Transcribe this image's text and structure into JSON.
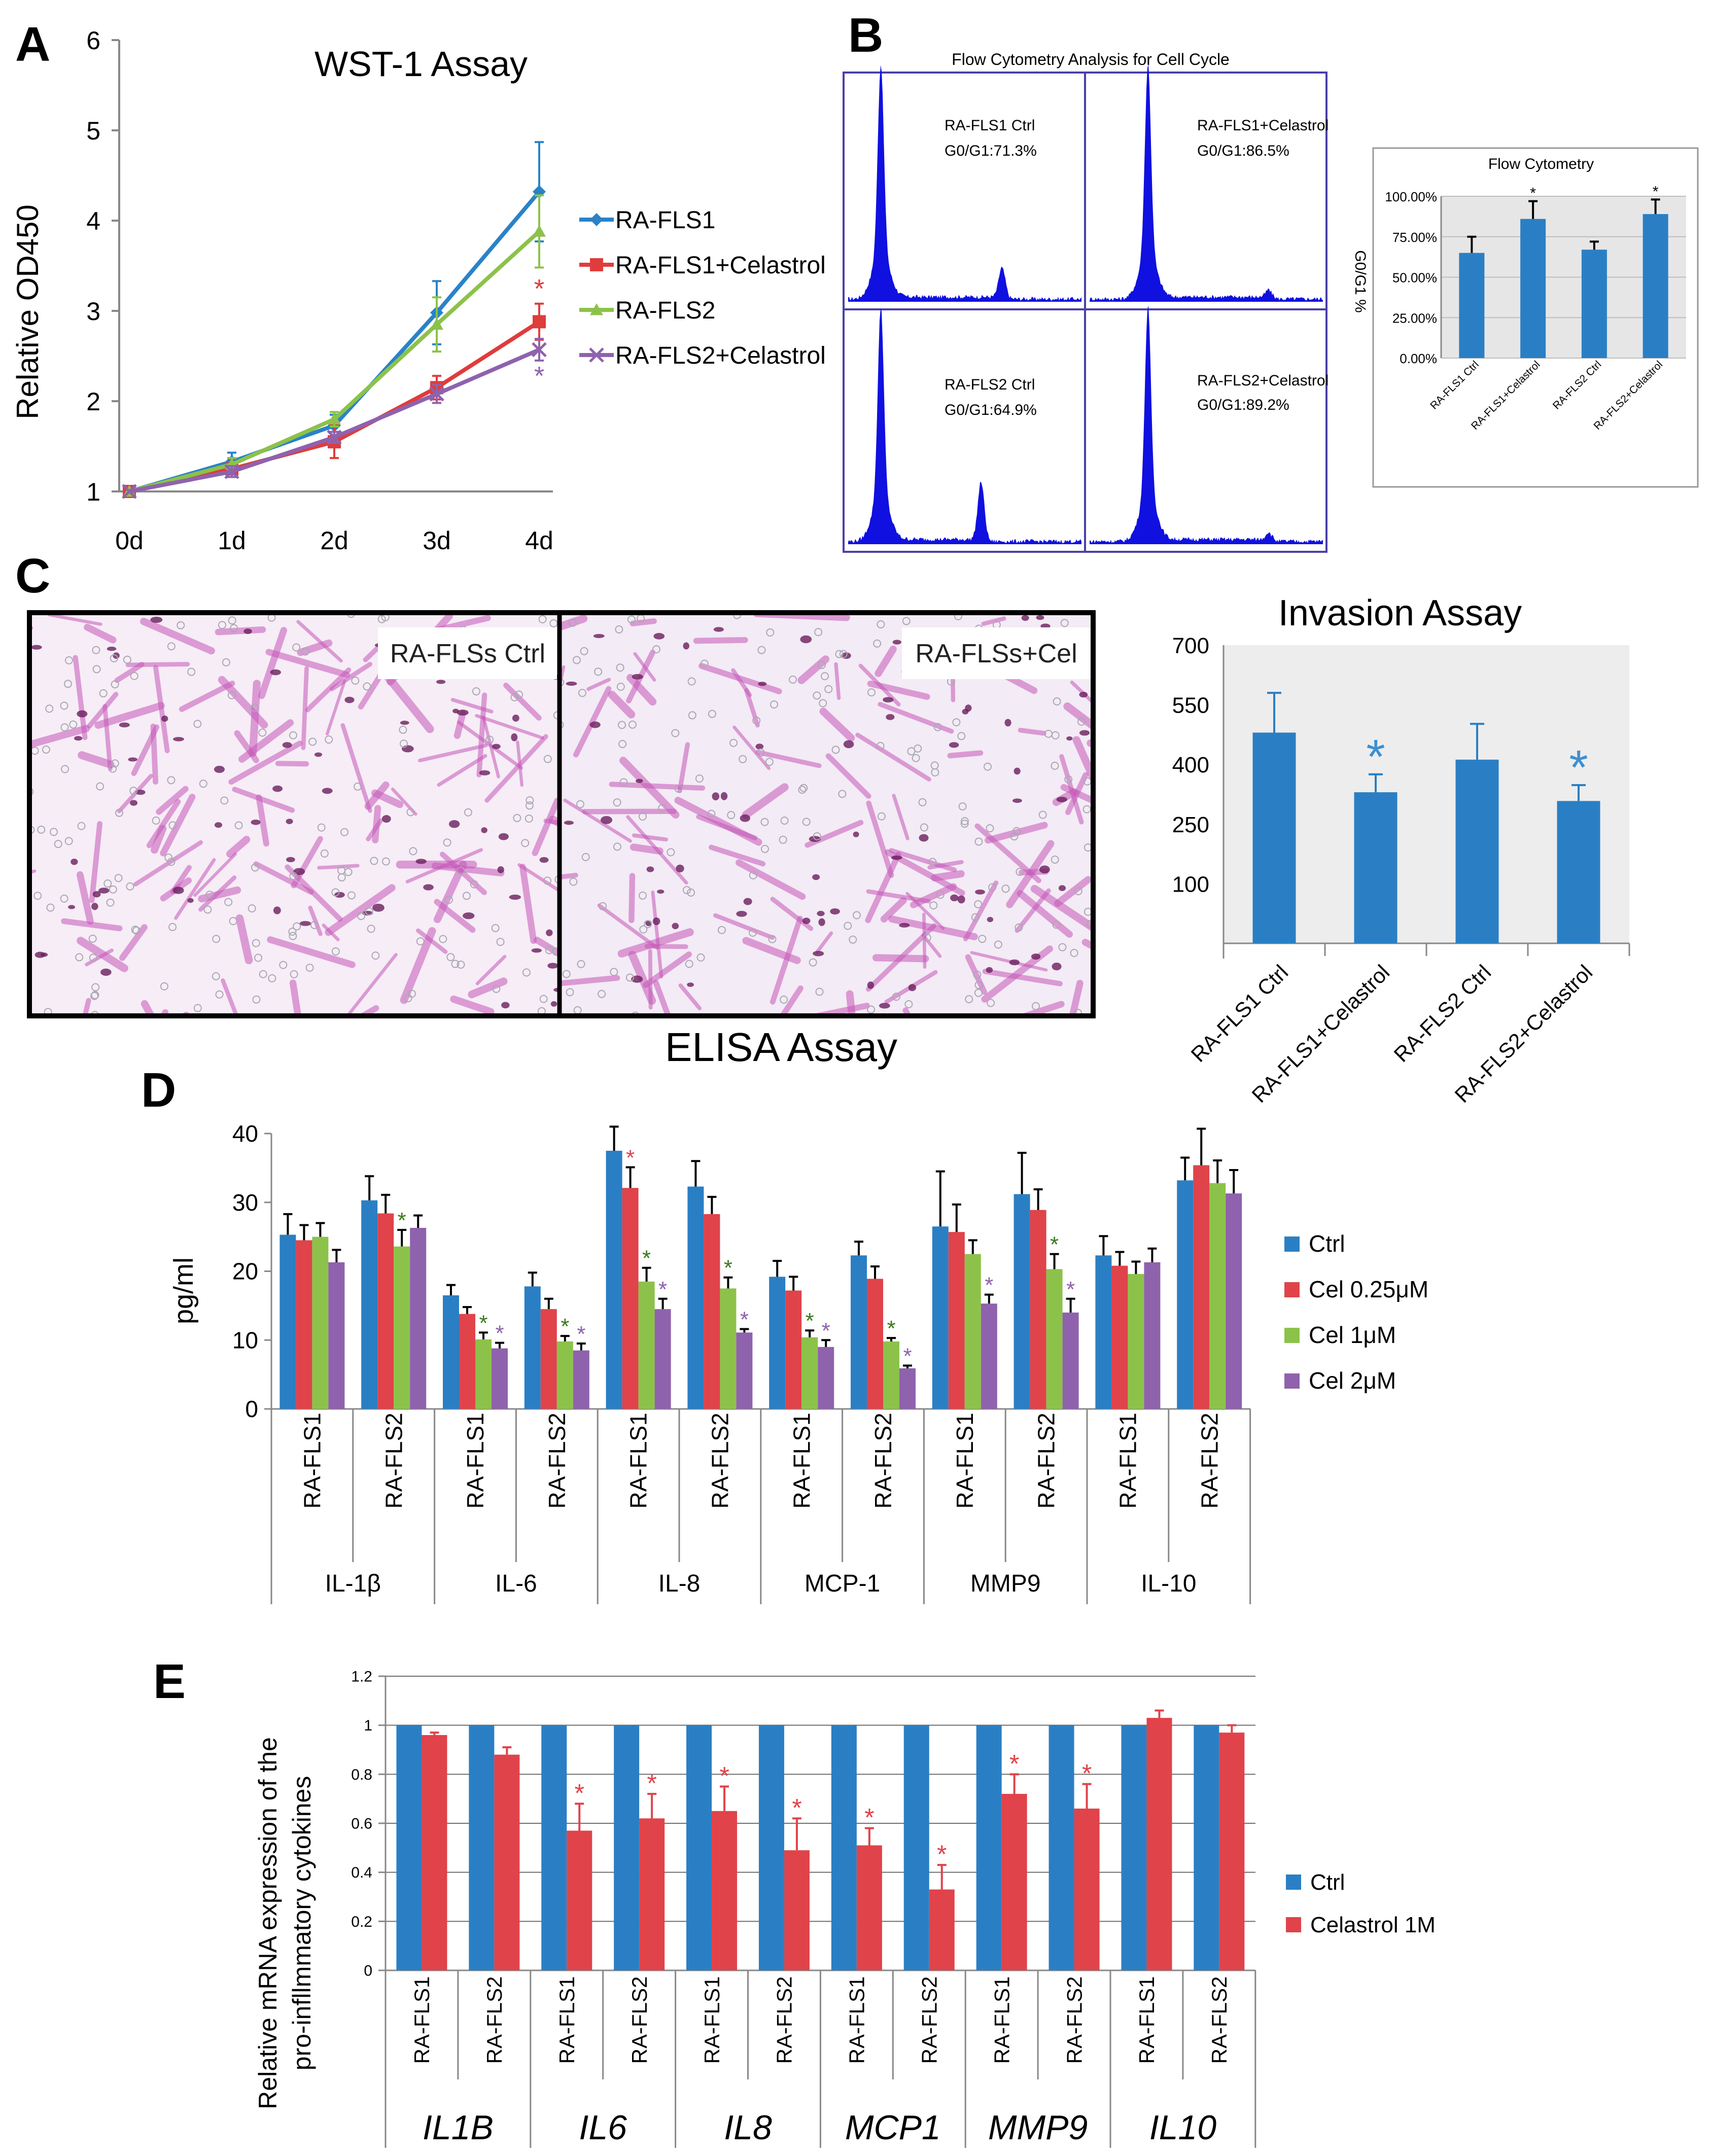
{
  "colors": {
    "blue": "#2a7fc4",
    "red": "#e0434a",
    "green": "#8cc24a",
    "purple": "#8f62ad",
    "line_blue": "#2a82c8",
    "line_red": "#df3c3c",
    "line_green": "#8cc24a",
    "line_purple": "#8f62ad",
    "flow_blue": "#1010e0",
    "panel_border": "#4a40a8",
    "star_blue": "#3d8fd2",
    "stain": "#c657b9",
    "axis": "#888888",
    "text": "#000000"
  },
  "panels": {
    "A": "A",
    "B": "B",
    "C": "C",
    "D": "D",
    "E": "E"
  },
  "panel_b": {
    "title": "Flow Cytometry Analysis for Cell Cycle",
    "histograms": [
      {
        "name": "RA-FLS1 Ctrl",
        "stat": "G0/G1:71.3%"
      },
      {
        "name": "RA-FLS1+Celastrol",
        "stat": "G0/G1:86.5%"
      },
      {
        "name": "RA-FLS2 Ctrl",
        "stat": "G0/G1:64.9%"
      },
      {
        "name": "RA-FLS2+Celastrol",
        "stat": "G0/G1:89.2%"
      }
    ]
  },
  "panel_c": {
    "images": [
      {
        "label": "RA-FLSs Ctrl"
      },
      {
        "label": "RA-FLSs+Cel"
      }
    ]
  },
  "chart_data": [
    {
      "id": "A",
      "type": "line",
      "title": "WST-1 Assay",
      "xlabel": "",
      "ylabel": "Relative OD450",
      "categories": [
        "0d",
        "1d",
        "2d",
        "3d",
        "4d"
      ],
      "ylim": [
        1,
        6
      ],
      "yticks": [
        1,
        2,
        3,
        4,
        5,
        6
      ],
      "series": [
        {
          "name": "RA-FLS1",
          "values": [
            1,
            1.33,
            1.73,
            2.98,
            4.32
          ],
          "errors": [
            0,
            0.1,
            0.12,
            0.35,
            0.55
          ],
          "marker": "diamond",
          "color_key": "line_blue"
        },
        {
          "name": "RA-FLS1+Celastrol",
          "values": [
            1,
            1.25,
            1.55,
            2.15,
            2.88
          ],
          "errors": [
            0,
            0.05,
            0.18,
            0.13,
            0.2
          ],
          "marker": "square",
          "color_key": "line_red",
          "annotations": [
            {
              "x": "4d",
              "text": "*"
            }
          ]
        },
        {
          "name": "RA-FLS2",
          "values": [
            1,
            1.3,
            1.8,
            2.85,
            3.88
          ],
          "errors": [
            0,
            0.07,
            0.08,
            0.3,
            0.4
          ],
          "marker": "triangle",
          "color_key": "line_green"
        },
        {
          "name": "RA-FLS2+Celastrol",
          "values": [
            1,
            1.22,
            1.6,
            2.08,
            2.57
          ],
          "errors": [
            0,
            0.06,
            0.06,
            0.1,
            0.12
          ],
          "marker": "x",
          "color_key": "line_purple",
          "annotations": [
            {
              "x": "4d",
              "text": "*"
            }
          ]
        }
      ]
    },
    {
      "id": "B",
      "type": "bar",
      "title": "Flow Cytometry",
      "xlabel": "",
      "ylabel": "G0/G1 %",
      "categories": [
        "RA-FLS1 Ctrl",
        "RA-FLS1+Celastrol",
        "RA-FLS2 Ctrl",
        "RA-FLS2+Celastrol"
      ],
      "values": [
        0.65,
        0.86,
        0.67,
        0.89
      ],
      "errors": [
        0.1,
        0.11,
        0.05,
        0.09
      ],
      "significance": [
        "",
        "*",
        "",
        "*"
      ],
      "ylim": [
        0,
        1
      ],
      "yticks": [
        0,
        0.25,
        0.5,
        0.75,
        1
      ],
      "ytick_labels": [
        "0.00%",
        "25.00%",
        "50.00%",
        "75.00%",
        "100.00%"
      ]
    },
    {
      "id": "C",
      "type": "bar",
      "title": "Invasion Assay",
      "xlabel": "",
      "ylabel": "",
      "categories": [
        "RA-FLS1 Ctrl",
        "RA-FLS1+Celastrol",
        "RA-FLS2 Ctrl",
        "RA-FLS2+Celastrol"
      ],
      "values": [
        480,
        330,
        412,
        308
      ],
      "errors": [
        100,
        45,
        90,
        40
      ],
      "significance": [
        "",
        "*",
        "",
        "*"
      ],
      "ylim": [
        -50,
        700
      ],
      "yticks": [
        100,
        250,
        400,
        550,
        700
      ]
    },
    {
      "id": "D",
      "type": "bar",
      "title": "ELISA Assay",
      "xlabel": "",
      "ylabel": "pg/ml",
      "groups": [
        "IL-1β",
        "IL-6",
        "IL-8",
        "MCP-1",
        "MMP9",
        "IL-10"
      ],
      "categories": [
        "RA-FLS1",
        "RA-FLS2",
        "RA-FLS1",
        "RA-FLS2",
        "RA-FLS1",
        "RA-FLS2",
        "RA-FLS1",
        "RA-FLS2",
        "RA-FLS1",
        "RA-FLS2",
        "RA-FLS1",
        "RA-FLS2"
      ],
      "ylim": [
        0,
        40
      ],
      "yticks": [
        0,
        10,
        20,
        30,
        40
      ],
      "series": [
        {
          "name": "Ctrl",
          "color_key": "blue",
          "values": [
            25.3,
            30.3,
            16.5,
            17.8,
            37.5,
            32.3,
            19.2,
            22.3,
            26.5,
            31.2,
            22.3,
            33.2
          ],
          "errors": [
            3,
            3.5,
            1.5,
            2,
            3.5,
            3.7,
            2.3,
            2,
            8,
            6,
            2.8,
            3.3
          ],
          "significance": [
            "",
            "",
            "",
            "",
            "",
            "",
            "",
            "",
            "",
            "",
            "",
            ""
          ]
        },
        {
          "name": "Cel 0.25μM",
          "color_key": "red",
          "values": [
            24.5,
            28.4,
            13.8,
            14.5,
            32.1,
            28.3,
            17.2,
            18.9,
            25.7,
            28.9,
            20.8,
            35.4
          ],
          "errors": [
            2.2,
            2.7,
            1,
            1.5,
            3,
            2.5,
            2,
            1.8,
            4,
            3,
            2,
            5.3
          ],
          "significance": [
            "",
            "",
            "",
            "",
            "*",
            "",
            "",
            "",
            "",
            "",
            "",
            ""
          ]
        },
        {
          "name": "Cel 1μM",
          "color_key": "green",
          "values": [
            25,
            23.6,
            10.1,
            9.8,
            18.5,
            17.5,
            10.4,
            9.8,
            22.5,
            20.3,
            19.6,
            32.8
          ],
          "errors": [
            2,
            2.4,
            1,
            0.8,
            2,
            1.6,
            1,
            0.5,
            2,
            2.2,
            1.8,
            3.3
          ],
          "significance": [
            "",
            "*",
            "*",
            "*",
            "*",
            "*",
            "*",
            "*",
            "",
            "*",
            "",
            ""
          ]
        },
        {
          "name": "Cel 2μM",
          "color_key": "purple",
          "values": [
            21.3,
            26.3,
            8.8,
            8.5,
            14.5,
            11.1,
            9,
            5.9,
            15.3,
            14,
            21.3,
            31.3
          ],
          "errors": [
            1.8,
            1.8,
            0.8,
            1,
            1.5,
            0.5,
            1,
            0.4,
            1.3,
            2,
            2,
            3.4
          ],
          "significance": [
            "",
            "",
            "*",
            "*",
            "*",
            "*",
            "*",
            "*",
            "*",
            "*",
            "",
            ""
          ]
        }
      ]
    },
    {
      "id": "E",
      "type": "bar",
      "title": "",
      "xlabel": "",
      "ylabel": "Relative mRNA expression of the pro-infllmmatory cytokines",
      "ylabel_lines": [
        "Relative mRNA expression of the",
        "pro-infllmmatory cytokines"
      ],
      "groups": [
        "IL1B",
        "IL6",
        "IL8",
        "MCP1",
        "MMP9",
        "IL10"
      ],
      "categories": [
        "RA-FLS1",
        "RA-FLS2",
        "RA-FLS1",
        "RA-FLS2",
        "RA-FLS1",
        "RA-FLS2",
        "RA-FLS1",
        "RA-FLS2",
        "RA-FLS1",
        "RA-FLS2",
        "RA-FLS1",
        "RA-FLS2"
      ],
      "ylim": [
        0,
        1.2
      ],
      "yticks": [
        0,
        0.2,
        0.4,
        0.6,
        0.8,
        1,
        1.2
      ],
      "series": [
        {
          "name": "Ctrl",
          "color_key": "blue",
          "values": [
            1,
            1,
            1,
            1,
            1,
            1,
            1,
            1,
            1,
            1,
            1,
            1
          ],
          "errors": [
            0,
            0,
            0,
            0,
            0,
            0,
            0,
            0,
            0,
            0,
            0,
            0
          ],
          "significance": [
            "",
            "",
            "",
            "",
            "",
            "",
            "",
            "",
            "",
            "",
            "",
            ""
          ]
        },
        {
          "name": "Celastrol 1M",
          "color_key": "red",
          "values": [
            0.96,
            0.88,
            0.57,
            0.62,
            0.65,
            0.49,
            0.51,
            0.33,
            0.72,
            0.66,
            1.03,
            0.97
          ],
          "errors": [
            0.01,
            0.03,
            0.11,
            0.1,
            0.1,
            0.13,
            0.07,
            0.1,
            0.08,
            0.1,
            0.03,
            0.03
          ],
          "significance": [
            "",
            "",
            "*",
            "*",
            "*",
            "*",
            "*",
            "*",
            "*",
            "*",
            "",
            ""
          ]
        }
      ]
    }
  ]
}
